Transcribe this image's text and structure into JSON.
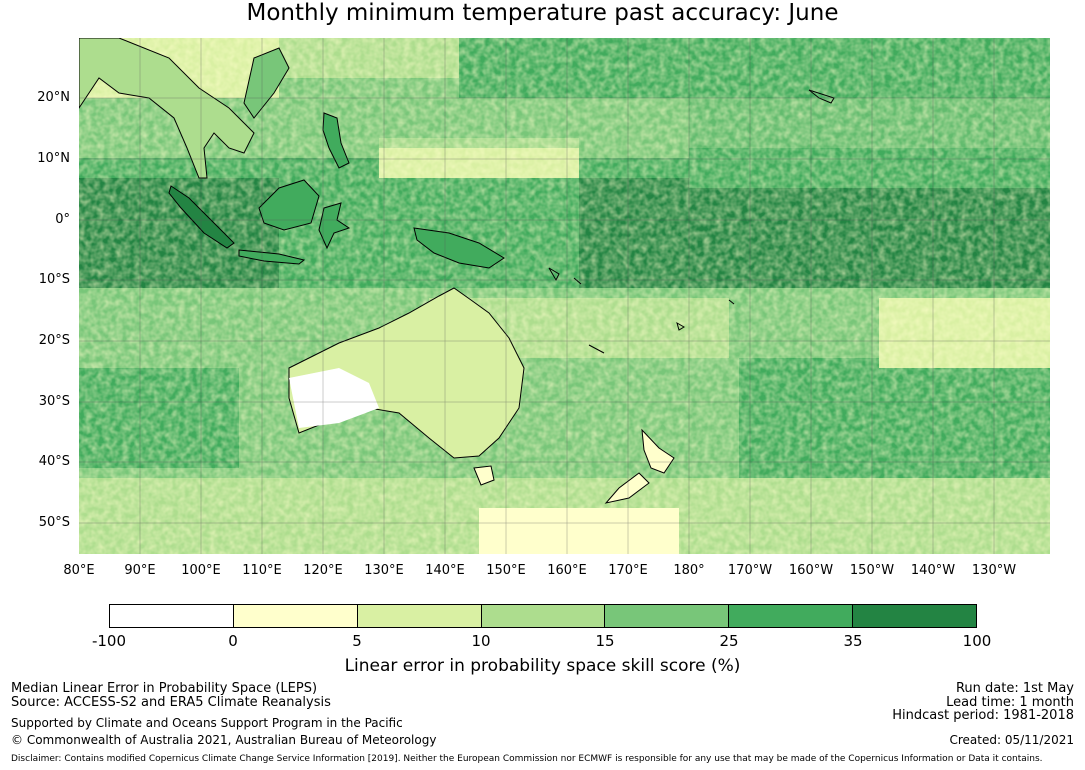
{
  "title": "Monthly minimum temperature past accuracy: June",
  "map": {
    "region": "Western Pacific and Australia",
    "lat_labels": [
      "20°N",
      "10°N",
      "0°",
      "10°S",
      "20°S",
      "30°S",
      "40°S",
      "50°S"
    ],
    "lon_labels": [
      "80°E",
      "90°E",
      "100°E",
      "110°E",
      "120°E",
      "130°E",
      "140°E",
      "150°E",
      "160°E",
      "170°E",
      "180°",
      "170°W",
      "160°W",
      "150°W",
      "140°W",
      "130°W"
    ],
    "extent": {
      "lon_min": 80,
      "lon_max": 239,
      "lat_min": -55,
      "lat_max": 30
    },
    "grid": true
  },
  "colorbar": {
    "ticks": [
      "-100",
      "0",
      "5",
      "10",
      "15",
      "25",
      "35",
      "100"
    ],
    "colors": [
      "#ffffff",
      "#ffffcc",
      "#d9f0a3",
      "#addd8e",
      "#78c679",
      "#41ab5d",
      "#238443"
    ],
    "label": "Linear error in probability space skill score (%)"
  },
  "footer": {
    "left_line1": "Median Linear Error in Probability Space (LEPS)",
    "left_line2": "Source: ACCESS-S2 and ERA5 Climate Reanalysis",
    "left_line3": "Supported by Climate and Oceans Support Program in the Pacific",
    "left_line4": "© Commonwealth of Australia 2021, Australian Bureau of Meteorology",
    "right_line1": "Run date: 1st May",
    "right_line2": "Lead time: 1 month",
    "right_line3": "Hindcast period: 1981-2018",
    "right_line4": "Created: 05/11/2021",
    "disclaimer": "Disclaimer: Contains modified Copernicus Climate Change Service Information [2019]. Neither the European Commission nor ECMWF is responsible for any use that may be made of the Copernicus Information or Data it contains."
  }
}
